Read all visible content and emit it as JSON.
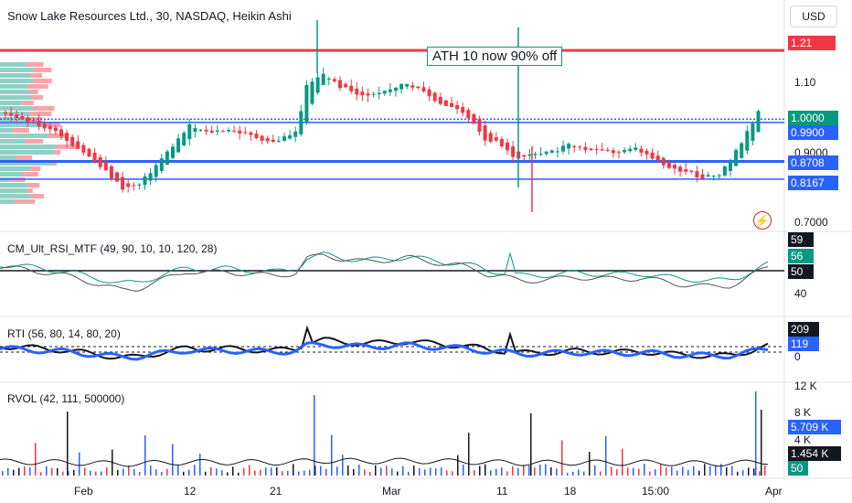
{
  "header": {
    "title": "Snow Lake Resources Ltd., 30, NASDAQ, Heikin Ashi",
    "currency_button": "USD"
  },
  "annotation": {
    "text": "ATH 10 now 90% off"
  },
  "indicators": {
    "rsi_mtf": "CM_Ult_RSI_MTF (49, 90, 10, 10, 120, 28)",
    "rti": "RTI (56, 80, 14, 80, 20)",
    "rvol": "RVOL (42, 111, 500000)"
  },
  "x_axis_labels": [
    "Feb",
    "12",
    "21",
    "Mar",
    "11",
    "18",
    "15:00",
    "Apr"
  ],
  "icons": {
    "alert": "lightning-icon"
  },
  "colors": {
    "up": "#089981",
    "down": "#f23645",
    "blue_line": "#2962ff",
    "red_line": "#f23645",
    "rsi_green": "#089981",
    "rsi_gray": "#555555",
    "rti_line": "#2962ff",
    "rvol_blue": "#2962ff"
  },
  "chart_data": [
    {
      "type": "candlestick",
      "title": "Snow Lake Resources Ltd., 30, NASDAQ, Heikin Ashi",
      "y_ticks": [
        "1.10",
        "0.9000",
        "0.7000"
      ],
      "ylim": [
        0.66,
        1.28
      ],
      "horizontal_levels": [
        {
          "label": "1.21",
          "value": 1.21,
          "color": "#f23645"
        },
        {
          "label": "1.0000",
          "value": 1.0,
          "color": "#2962ff"
        },
        {
          "label": "0.9900",
          "value": 0.99,
          "color": "#2962ff"
        },
        {
          "label": "0.8708",
          "value": 0.8708,
          "color": "#2962ff"
        },
        {
          "label": "0.8167",
          "value": 0.8167,
          "color": "#2962ff"
        }
      ],
      "price_path": [
        [
          0,
          1.02
        ],
        [
          5,
          0.99
        ],
        [
          10,
          0.95
        ],
        [
          14,
          0.9
        ],
        [
          18,
          0.84
        ],
        [
          21,
          0.79
        ],
        [
          24,
          0.8
        ],
        [
          27,
          0.86
        ],
        [
          30,
          0.92
        ],
        [
          33,
          0.98
        ],
        [
          36,
          0.96
        ],
        [
          40,
          0.97
        ],
        [
          44,
          0.95
        ],
        [
          48,
          0.93
        ],
        [
          52,
          0.96
        ],
        [
          54,
          1.1
        ],
        [
          57,
          1.14
        ],
        [
          60,
          1.1
        ],
        [
          64,
          1.07
        ],
        [
          68,
          1.09
        ],
        [
          72,
          1.11
        ],
        [
          75,
          1.08
        ],
        [
          78,
          1.05
        ],
        [
          81,
          1.03
        ],
        [
          84,
          0.99
        ],
        [
          86,
          0.94
        ],
        [
          88,
          0.93
        ],
        [
          90,
          0.9
        ],
        [
          92,
          0.88
        ],
        [
          95,
          0.89
        ],
        [
          98,
          0.9
        ],
        [
          101,
          0.92
        ],
        [
          104,
          0.91
        ],
        [
          107,
          0.9
        ],
        [
          110,
          0.9
        ],
        [
          113,
          0.91
        ],
        [
          116,
          0.88
        ],
        [
          119,
          0.85
        ],
        [
          122,
          0.84
        ],
        [
          125,
          0.82
        ],
        [
          128,
          0.83
        ],
        [
          130,
          0.87
        ],
        [
          132,
          0.93
        ],
        [
          134,
          0.99
        ],
        [
          135,
          1.02
        ]
      ]
    },
    {
      "type": "line",
      "title": "CM_Ult_RSI_MTF (49, 90, 10, 10, 120, 28)",
      "y_ticks": [
        "40"
      ],
      "badges": [
        {
          "label": "59",
          "value": 59
        },
        {
          "label": "56",
          "value": 56
        },
        {
          "label": "50",
          "value": 50
        }
      ],
      "ylim": [
        35,
        65
      ],
      "series": []
    },
    {
      "type": "line",
      "title": "RTI (56, 80, 14, 80, 20)",
      "y_ticks": [
        "0"
      ],
      "badges": [
        {
          "label": "209",
          "value": 209
        },
        {
          "label": "119",
          "value": 119
        }
      ],
      "series": []
    },
    {
      "type": "bar",
      "title": "RVOL (42, 111, 500000)",
      "y_ticks": [
        "12 K",
        "8 K",
        "4 K"
      ],
      "badges": [
        {
          "label": "5.709 K",
          "value": 5709
        },
        {
          "label": "1.454 K",
          "value": 1454
        },
        {
          "label": "50",
          "value": 50
        }
      ],
      "ylim": [
        0,
        12000
      ]
    }
  ]
}
